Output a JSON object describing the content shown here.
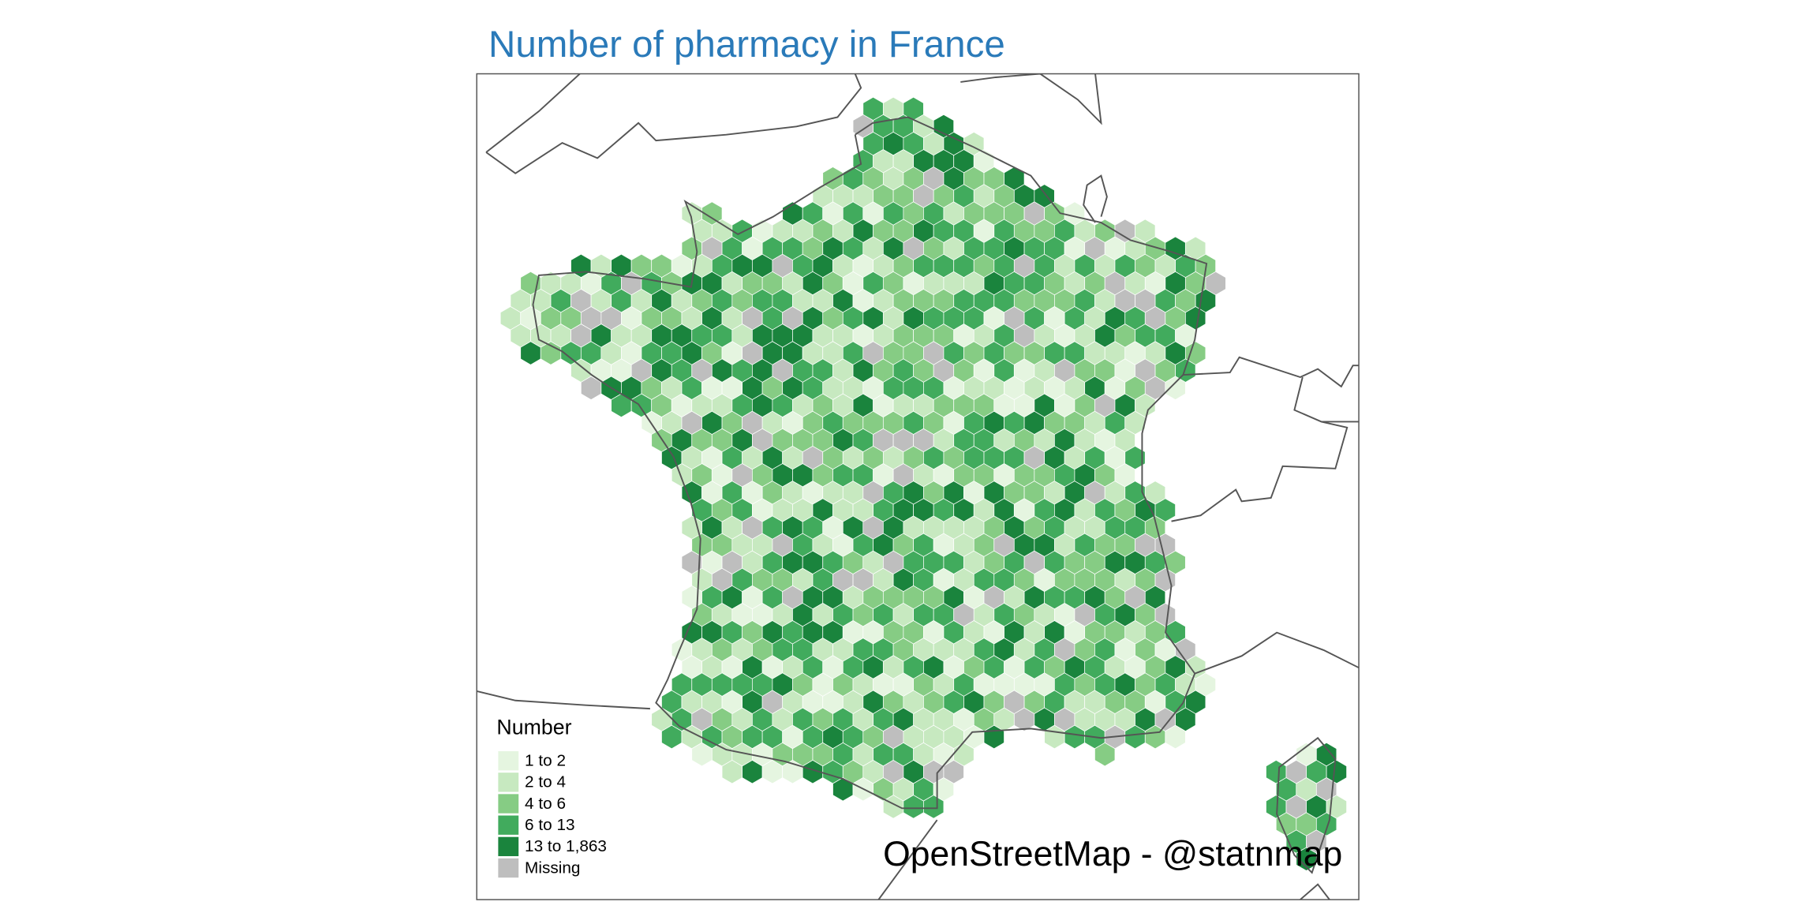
{
  "title": "Number of pharmacy in France",
  "legend": {
    "title": "Number",
    "items": [
      {
        "label": "1 to 2",
        "color": "#e5f5e0"
      },
      {
        "label": "2 to 4",
        "color": "#c7e9c0"
      },
      {
        "label": "4 to 6",
        "color": "#86cc84"
      },
      {
        "label": "6 to 13",
        "color": "#41ab5d"
      },
      {
        "label": "13 to 1,863",
        "color": "#1a843d"
      },
      {
        "label": "Missing",
        "color": "#bebebe"
      }
    ]
  },
  "credits": "OpenStreetMap - @statnmap"
}
